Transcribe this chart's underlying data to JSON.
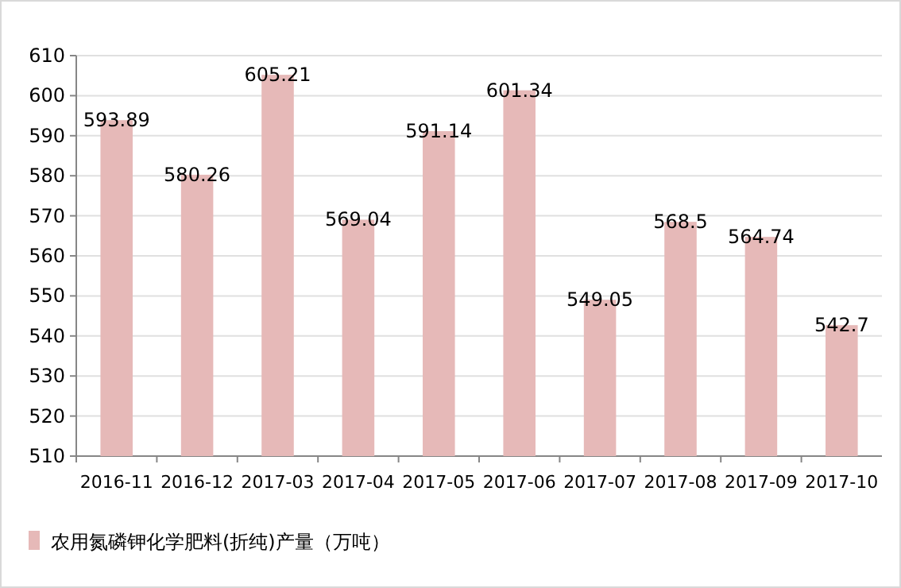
{
  "chart_data": {
    "type": "bar",
    "categories": [
      "2016-11",
      "2016-12",
      "2017-03",
      "2017-04",
      "2017-05",
      "2017-06",
      "2017-07",
      "2017-08",
      "2017-09",
      "2017-10"
    ],
    "series": [
      {
        "name": "农用氮磷钾化学肥料(折纯)产量（万吨）",
        "color": "#e6b9b8",
        "values": [
          593.89,
          580.26,
          605.21,
          569.04,
          591.14,
          601.34,
          549.05,
          568.5,
          564.74,
          542.7
        ]
      }
    ],
    "ylim": [
      510,
      610
    ],
    "yticks": [
      510,
      520,
      530,
      540,
      550,
      560,
      570,
      580,
      590,
      600,
      610
    ],
    "grid": "y",
    "legend": "bottom",
    "data_labels": true
  }
}
